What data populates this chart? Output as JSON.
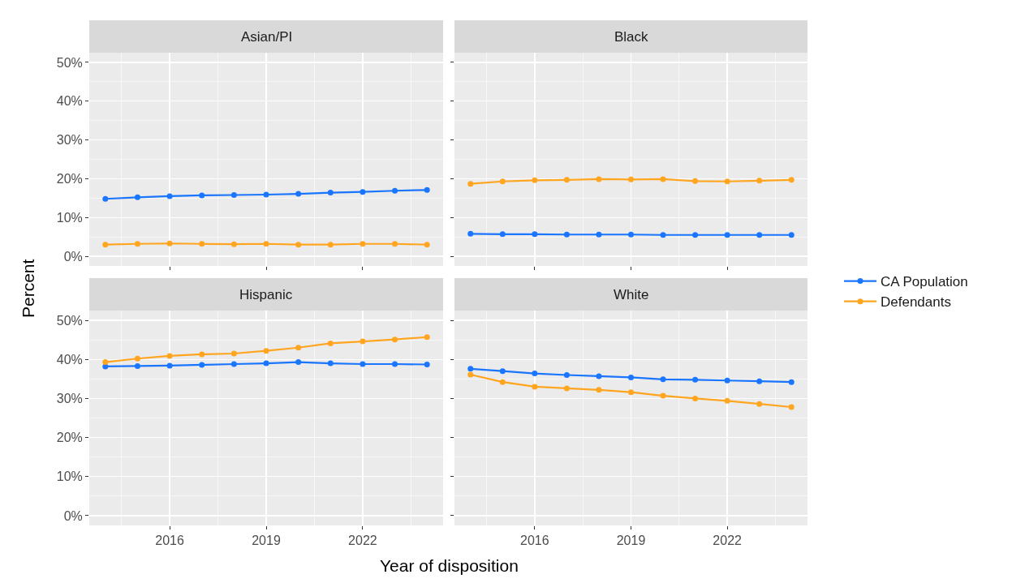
{
  "chart_data": [
    {
      "type": "line",
      "title": "Asian/PI",
      "ylabel": "Percent",
      "legend": "right",
      "marker": "circle",
      "line_style": "solid",
      "grid": true,
      "tick_labels": "y",
      "x": [
        2014,
        2015,
        2016,
        2017,
        2018,
        2019,
        2020,
        2021,
        2022,
        2023,
        2024
      ],
      "xlim": [
        2013.5,
        2024.5
      ],
      "xticks": [
        {
          "value": 2016,
          "label": null
        },
        {
          "value": 2019,
          "label": null
        },
        {
          "value": 2022,
          "label": null
        }
      ],
      "ylim": [
        -2.5,
        52.5
      ],
      "yticks": [
        {
          "value": 0,
          "label": "0%"
        },
        {
          "value": 10,
          "label": "10%"
        },
        {
          "value": 20,
          "label": "20%"
        },
        {
          "value": 30,
          "label": "30%"
        },
        {
          "value": 40,
          "label": "40%"
        },
        {
          "value": 50,
          "label": "50%"
        }
      ],
      "series": [
        {
          "name": "CA Population",
          "color": "#1a75ff",
          "values": [
            14.8,
            15.2,
            15.5,
            15.7,
            15.8,
            15.9,
            16.1,
            16.4,
            16.6,
            16.9,
            17.1
          ]
        },
        {
          "name": "Defendants",
          "color": "#ffa520",
          "values": [
            3.0,
            3.2,
            3.3,
            3.2,
            3.1,
            3.2,
            3.0,
            3.0,
            3.2,
            3.2,
            3.0
          ]
        }
      ]
    },
    {
      "type": "line",
      "title": "Black",
      "marker": "circle",
      "line_style": "solid",
      "grid": true,
      "tick_labels": false,
      "x": [
        2014,
        2015,
        2016,
        2017,
        2018,
        2019,
        2020,
        2021,
        2022,
        2023,
        2024
      ],
      "xlim": [
        2013.5,
        2024.5
      ],
      "xticks": [
        {
          "value": 2016,
          "label": null
        },
        {
          "value": 2019,
          "label": null
        },
        {
          "value": 2022,
          "label": null
        }
      ],
      "ylim": [
        -2.5,
        52.5
      ],
      "yticks": [
        {
          "value": 0,
          "label": null
        },
        {
          "value": 10,
          "label": null
        },
        {
          "value": 20,
          "label": null
        },
        {
          "value": 30,
          "label": null
        },
        {
          "value": 40,
          "label": null
        },
        {
          "value": 50,
          "label": null
        }
      ],
      "series": [
        {
          "color": "#1a75ff",
          "values": [
            5.8,
            5.7,
            5.7,
            5.6,
            5.6,
            5.6,
            5.5,
            5.5,
            5.5,
            5.5,
            5.5
          ]
        },
        {
          "color": "#ffa520",
          "values": [
            18.7,
            19.3,
            19.6,
            19.7,
            19.9,
            19.8,
            19.9,
            19.4,
            19.3,
            19.5,
            19.7
          ]
        }
      ]
    },
    {
      "type": "line",
      "title": "Hispanic",
      "xlabel": "Year of disposition",
      "marker": "circle",
      "line_style": "solid",
      "grid": true,
      "x": [
        2014,
        2015,
        2016,
        2017,
        2018,
        2019,
        2020,
        2021,
        2022,
        2023,
        2024
      ],
      "xlim": [
        2013.5,
        2024.5
      ],
      "xticks": [
        2016,
        2019,
        2022
      ],
      "ylim": [
        -2.5,
        52.5
      ],
      "yticks": [
        {
          "value": 0,
          "label": "0%"
        },
        {
          "value": 10,
          "label": "10%"
        },
        {
          "value": 20,
          "label": "20%"
        },
        {
          "value": 30,
          "label": "30%"
        },
        {
          "value": 40,
          "label": "40%"
        },
        {
          "value": 50,
          "label": "50%"
        }
      ],
      "series": [
        {
          "color": "#1a75ff",
          "values": [
            38.2,
            38.3,
            38.4,
            38.6,
            38.8,
            39.0,
            39.3,
            39.0,
            38.8,
            38.8,
            38.7
          ]
        },
        {
          "color": "#ffa520",
          "values": [
            39.3,
            40.2,
            40.9,
            41.3,
            41.5,
            42.2,
            43.0,
            44.1,
            44.6,
            45.1,
            45.7
          ]
        }
      ]
    },
    {
      "type": "line",
      "title": "White",
      "marker": "circle",
      "line_style": "solid",
      "grid": true,
      "tick_labels": "x",
      "x": [
        2014,
        2015,
        2016,
        2017,
        2018,
        2019,
        2020,
        2021,
        2022,
        2023,
        2024
      ],
      "xlim": [
        2013.5,
        2024.5
      ],
      "xticks": [
        2016,
        2019,
        2022
      ],
      "ylim": [
        -2.5,
        52.5
      ],
      "yticks": [
        {
          "value": 0,
          "label": null
        },
        {
          "value": 10,
          "label": null
        },
        {
          "value": 20,
          "label": null
        },
        {
          "value": 30,
          "label": null
        },
        {
          "value": 40,
          "label": null
        },
        {
          "value": 50,
          "label": null
        }
      ],
      "series": [
        {
          "color": "#1a75ff",
          "values": [
            37.6,
            37.0,
            36.4,
            36.0,
            35.7,
            35.4,
            34.9,
            34.8,
            34.6,
            34.4,
            34.2
          ]
        },
        {
          "color": "#ffa520",
          "values": [
            36.1,
            34.2,
            33.0,
            32.6,
            32.2,
            31.6,
            30.7,
            30.0,
            29.4,
            28.6,
            27.8
          ]
        }
      ]
    }
  ]
}
